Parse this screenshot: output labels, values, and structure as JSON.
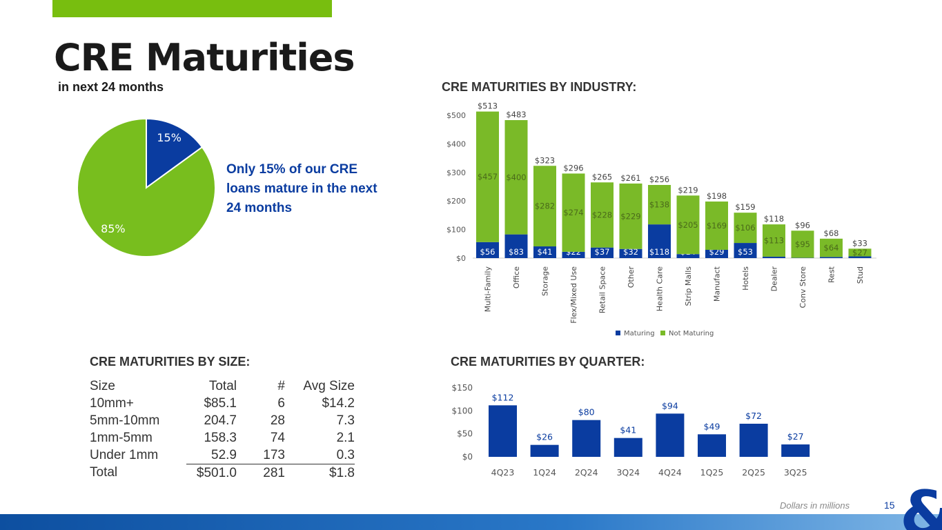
{
  "title": "CRE Maturities",
  "subtitle": "in next 24 months",
  "callout": "Only 15% of our CRE loans mature in the next 24 months",
  "colors": {
    "blue": "#0a3ca0",
    "green": "#78be1e",
    "bar_green": "#7aba28"
  },
  "pie": {
    "slices": [
      {
        "label": "15%",
        "value": 15,
        "color": "#0a3ca0"
      },
      {
        "label": "85%",
        "value": 85,
        "color": "#78be1e"
      }
    ]
  },
  "industry": {
    "heading": "CRE MATURITIES BY INDUSTRY:"
  },
  "size": {
    "heading": "CRE MATURITIES BY SIZE:",
    "headers": [
      "Size",
      "Total",
      "#",
      "Avg Size"
    ],
    "rows": [
      [
        "10mm+",
        "$85.1",
        "6",
        "$14.2"
      ],
      [
        "5mm-10mm",
        "204.7",
        "28",
        "7.3"
      ],
      [
        "1mm-5mm",
        "158.3",
        "74",
        "2.1"
      ],
      [
        "Under 1mm",
        "52.9",
        "173",
        "0.3"
      ],
      [
        "Total",
        "$501.0",
        "281",
        "$1.8"
      ]
    ]
  },
  "quarter": {
    "heading": "CRE MATURITIES BY QUARTER:"
  },
  "footer": {
    "note": "Dollars in millions",
    "page": "15"
  },
  "chart_data": [
    {
      "type": "bar",
      "stacked": true,
      "ylim": [
        0,
        500
      ],
      "yticks": [
        "$0",
        "$100",
        "$200",
        "$300",
        "$400",
        "$500"
      ],
      "categories": [
        "Multi-Family",
        "Office",
        "Storage",
        "Flex/Mixed Use",
        "Retail Space",
        "Other",
        "Health Care",
        "Strip Malls",
        "Manufact",
        "Hotels",
        "Dealer",
        "Conv Store",
        "Rest",
        "Stud"
      ],
      "series": [
        {
          "name": "Maturing",
          "color": "#0a3ca0",
          "values": [
            56,
            83,
            41,
            22,
            37,
            32,
            118,
            14,
            29,
            53,
            5,
            1,
            4,
            6
          ],
          "labels": [
            "$56",
            "$83",
            "$41",
            "$22",
            "$37",
            "$32",
            "$118",
            "$14",
            "$29",
            "$53",
            "",
            "",
            "",
            ""
          ]
        },
        {
          "name": "Not Maturing",
          "color": "#7aba28",
          "values": [
            457,
            400,
            282,
            274,
            228,
            229,
            138,
            205,
            169,
            106,
            113,
            95,
            64,
            27
          ],
          "labels": [
            "$457",
            "$400",
            "$282",
            "$274",
            "$228",
            "$229",
            "$138",
            "$205",
            "$169",
            "$106",
            "$113",
            "$95",
            "$64",
            "$27"
          ]
        }
      ],
      "totals": [
        "$513",
        "$483",
        "$323",
        "$296",
        "$265",
        "$261",
        "$256",
        "$219",
        "$198",
        "$159",
        "$118",
        "$96",
        "$68",
        "$33"
      ],
      "legend": "bottom"
    },
    {
      "type": "bar",
      "ylim": [
        0,
        150
      ],
      "yticks": [
        "$0",
        "$50",
        "$100",
        "$150"
      ],
      "categories": [
        "4Q23",
        "1Q24",
        "2Q24",
        "3Q24",
        "4Q24",
        "1Q25",
        "2Q25",
        "3Q25"
      ],
      "values": [
        112,
        26,
        80,
        41,
        94,
        49,
        72,
        27
      ],
      "labels": [
        "$112",
        "$26",
        "$80",
        "$41",
        "$94",
        "$49",
        "$72",
        "$27"
      ],
      "color": "#0a3ca0"
    }
  ]
}
